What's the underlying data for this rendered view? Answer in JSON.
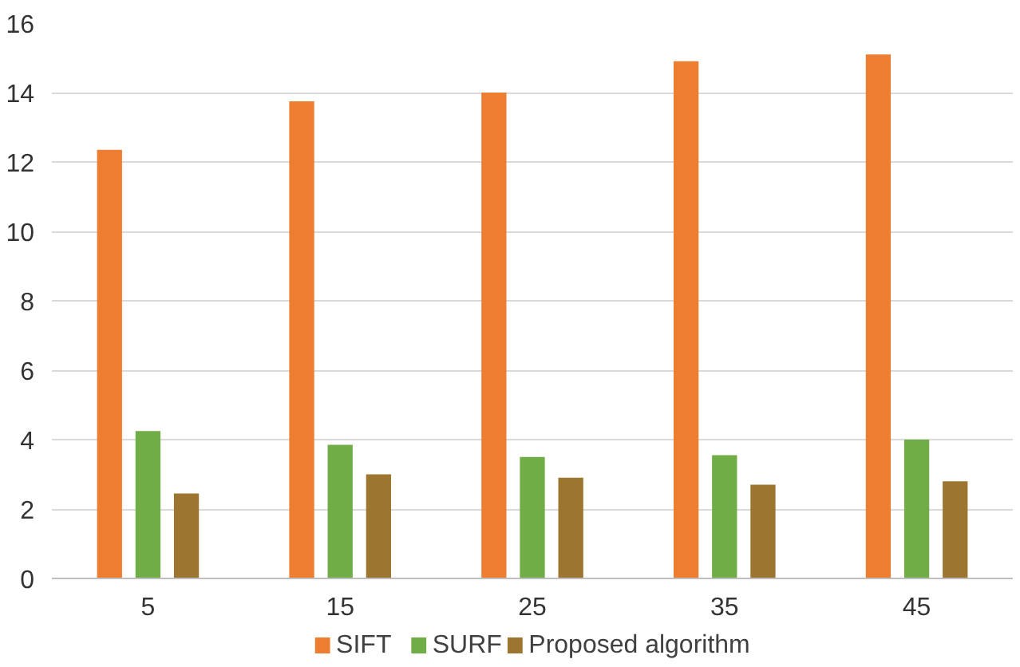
{
  "chart_data": {
    "type": "bar",
    "categories": [
      "5",
      "15",
      "25",
      "35",
      "45"
    ],
    "series": [
      {
        "name": "SIFT",
        "color": "#ed7d31",
        "values": [
          12.35,
          13.75,
          14.0,
          14.9,
          15.1
        ]
      },
      {
        "name": "SURF",
        "color": "#70ad47",
        "values": [
          4.25,
          3.85,
          3.5,
          3.55,
          4.0
        ]
      },
      {
        "name": "Proposed algorithm",
        "color": "#9c7630",
        "values": [
          2.45,
          3.0,
          2.9,
          2.7,
          2.8
        ]
      }
    ],
    "ylim": [
      0,
      16
    ],
    "yticks": [
      0,
      2,
      4,
      6,
      8,
      10,
      12,
      14,
      16
    ],
    "grid": "y",
    "legend": "bottom"
  }
}
